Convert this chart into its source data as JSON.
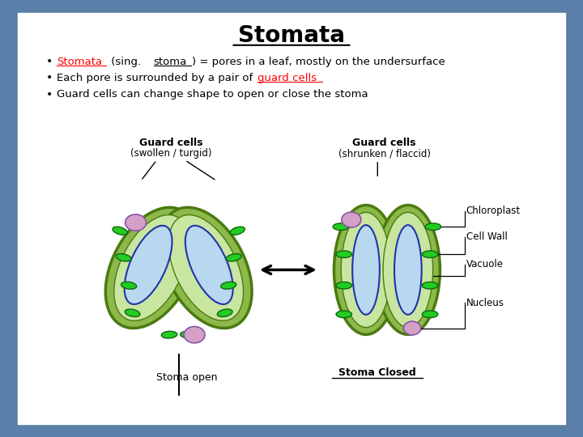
{
  "title": "Stomata",
  "bg_outer": "#5a7fa8",
  "bg_inner": "#ffffff",
  "bullet1_red": "Stomata",
  "bullet1_red_underline": "stoma",
  "bullet1_rest": " (sing. stoma) = pores in a leaf, mostly on the undersurface",
  "bullet2_pre": "Each pore is surrounded by a pair of ",
  "bullet2_red": "guard cells",
  "bullet3": "Guard cells can change shape to open or close the stoma",
  "label_left_title": "Guard cells",
  "label_left_sub": "(swollen / turgid)",
  "label_right_title": "Guard cells",
  "label_right_sub": "(shrunken / flaccid)",
  "label_open": "Stoma open",
  "label_closed": "Stoma Closed",
  "label_chloroplast": "Chloroplast",
  "label_cellwall": "Cell Wall",
  "label_vacuole": "Vacuole",
  "label_nucleus": "Nucleus",
  "color_outer_cell": "#8db84a",
  "color_inner_cell": "#c8e6a0",
  "color_vacuole": "#b8d8f0",
  "color_nucleus": "#d4a0c8",
  "color_chloroplast": "#22cc22",
  "color_vacuole_outline": "#2233aa",
  "color_cell_edge": "#4a7a10"
}
